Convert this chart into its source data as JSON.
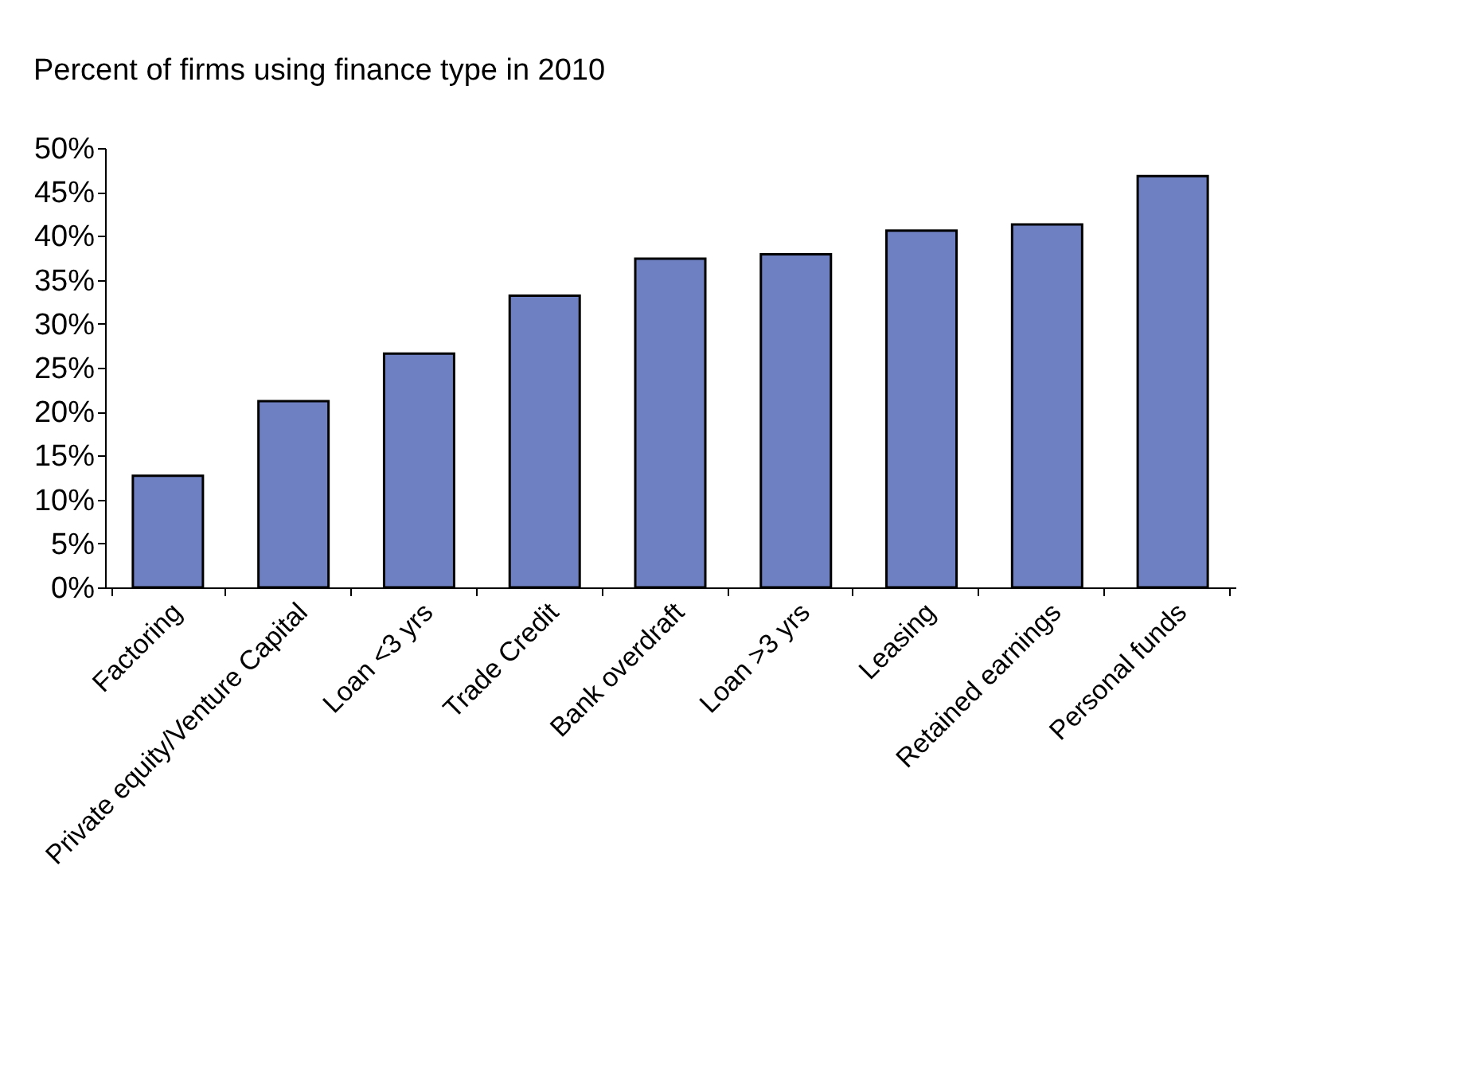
{
  "chart_data": {
    "type": "bar",
    "title": "Percent of firms using finance type in 2010",
    "categories": [
      "Factoring",
      "Private equity/Venture Capital",
      "Loan <3 yrs",
      "Trade Credit",
      "Bank overdraft",
      "Loan >3 yrs",
      "Leasing",
      "Retained earnings",
      "Personal funds"
    ],
    "values": [
      12.7,
      21.2,
      26.6,
      33.2,
      37.4,
      37.9,
      40.6,
      41.3,
      46.8
    ],
    "color": "#6f80c2",
    "ylim": [
      0,
      50
    ],
    "yticks": [
      {
        "value": 0,
        "label": "0%"
      },
      {
        "value": 5,
        "label": "5%"
      },
      {
        "value": 10,
        "label": "10%"
      },
      {
        "value": 15,
        "label": "15%"
      },
      {
        "value": 20,
        "label": "20%"
      },
      {
        "value": 25,
        "label": "25%"
      },
      {
        "value": 30,
        "label": "30%"
      },
      {
        "value": 35,
        "label": "35%"
      },
      {
        "value": 40,
        "label": "40%"
      },
      {
        "value": 45,
        "label": "45%"
      },
      {
        "value": 50,
        "label": "50%"
      }
    ],
    "grid": false
  }
}
